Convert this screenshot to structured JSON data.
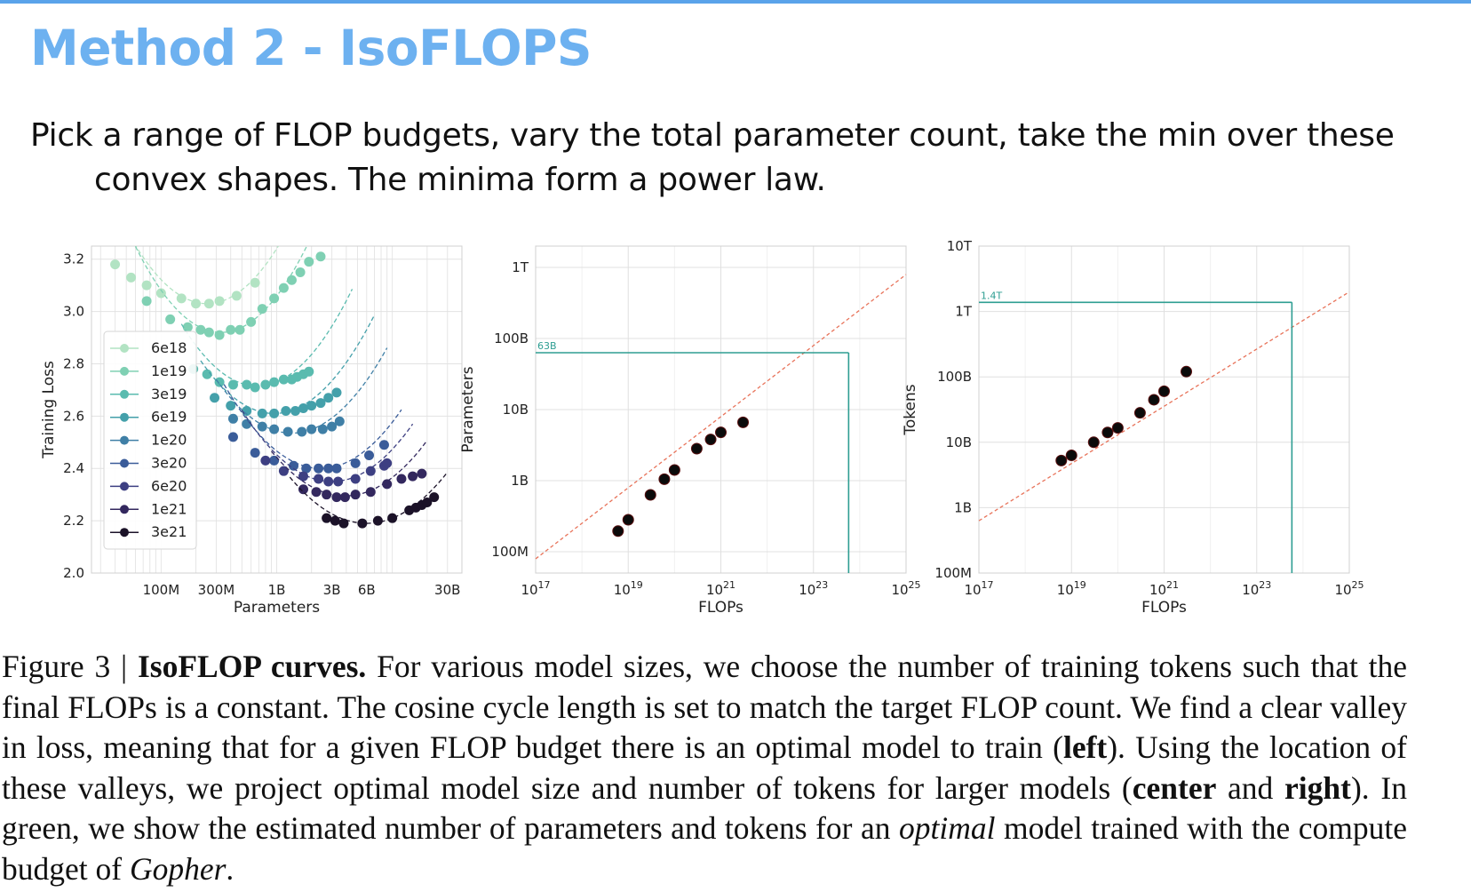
{
  "slide": {
    "title": "Method 2 - IsoFLOPS",
    "subtitle": "Pick a range of FLOP budgets, vary the total parameter count, take the min over these convex shapes. The minima form a power law."
  },
  "caption": {
    "figure_label": "Figure 3 | ",
    "bold_title": "IsoFLOP curves.",
    "text_1": " For various model sizes, we choose the number of training tokens such that the final FLOPs is a constant. The cosine cycle length is set to match the target FLOP count. We find a clear valley in loss, meaning that for a given FLOP budget there is an optimal model to train (",
    "left": "left",
    "text_2": "). Using the location of these valleys, we project optimal model size and number of tokens for larger models (",
    "center": "center",
    "text_3": " and ",
    "right": "right",
    "text_4": "). In green, we show the estimated number of parameters and tokens for an ",
    "optimal": "optimal",
    "text_5": " model trained with the compute budget of ",
    "gopher": "Gopher",
    "text_6": "."
  },
  "chart_data": [
    {
      "type": "line",
      "xlabel": "Parameters",
      "ylabel": "Training Loss",
      "x_scale": "log",
      "xlim": [
        25000000,
        40000000000
      ],
      "ylim": [
        2.0,
        3.25
      ],
      "x_ticks": [
        {
          "value": 100000000,
          "label": "100M"
        },
        {
          "value": 300000000,
          "label": "300M"
        },
        {
          "value": 1000000000,
          "label": "1B"
        },
        {
          "value": 3000000000,
          "label": "3B"
        },
        {
          "value": 6000000000,
          "label": "6B"
        },
        {
          "value": 30000000000,
          "label": "30B"
        }
      ],
      "y_ticks": [
        {
          "value": 2.0,
          "label": "2.0"
        },
        {
          "value": 2.2,
          "label": "2.2"
        },
        {
          "value": 2.4,
          "label": "2.4"
        },
        {
          "value": 2.6,
          "label": "2.6"
        },
        {
          "value": 2.8,
          "label": "2.8"
        },
        {
          "value": 3.0,
          "label": "3.0"
        },
        {
          "value": 3.2,
          "label": "3.2"
        }
      ],
      "grid": true,
      "legend_position": "lower-left",
      "series": [
        {
          "name": "6e18",
          "color": "#b2e3c3",
          "x_range": [
            35000000,
            1800000000
          ],
          "min_x": 250000000,
          "min_y": 3.03,
          "curvature": 0.58,
          "points": [
            [
              40000000,
              3.18
            ],
            [
              55000000,
              3.13
            ],
            [
              75000000,
              3.1
            ],
            [
              100000000,
              3.07
            ],
            [
              150000000,
              3.05
            ],
            [
              200000000,
              3.03
            ],
            [
              260000000,
              3.03
            ],
            [
              320000000,
              3.04
            ],
            [
              450000000,
              3.06
            ],
            [
              650000000,
              3.11
            ]
          ]
        },
        {
          "name": "1e19",
          "color": "#7fd0b3",
          "x_range": [
            60000000,
            3000000000
          ],
          "min_x": 330000000,
          "min_y": 2.92,
          "curvature": 0.6,
          "points": [
            [
              75000000,
              3.04
            ],
            [
              120000000,
              2.97
            ],
            [
              170000000,
              2.94
            ],
            [
              220000000,
              2.93
            ],
            [
              260000000,
              2.92
            ],
            [
              320000000,
              2.91
            ],
            [
              400000000,
              2.93
            ],
            [
              480000000,
              2.93
            ],
            [
              600000000,
              2.96
            ],
            [
              750000000,
              3.01
            ],
            [
              950000000,
              3.05
            ],
            [
              1150000000,
              3.09
            ],
            [
              1350000000,
              3.12
            ],
            [
              1600000000,
              3.15
            ],
            [
              1900000000,
              3.19
            ],
            [
              2400000000,
              3.21
            ]
          ]
        },
        {
          "name": "3e19",
          "color": "#5abbaf",
          "x_range": [
            150000000,
            4500000000
          ],
          "min_x": 680000000,
          "min_y": 2.715,
          "curvature": 0.55,
          "points": [
            [
              190000000,
              2.78
            ],
            [
              250000000,
              2.76
            ],
            [
              320000000,
              2.73
            ],
            [
              420000000,
              2.72
            ],
            [
              550000000,
              2.72
            ],
            [
              650000000,
              2.71
            ],
            [
              800000000,
              2.72
            ],
            [
              950000000,
              2.73
            ],
            [
              1150000000,
              2.74
            ],
            [
              1350000000,
              2.74
            ],
            [
              1500000000,
              2.75
            ],
            [
              1700000000,
              2.76
            ],
            [
              1900000000,
              2.77
            ]
          ]
        },
        {
          "name": "6e19",
          "color": "#44a0aa",
          "x_range": [
            220000000,
            7000000000
          ],
          "min_x": 950000000,
          "min_y": 2.61,
          "curvature": 0.5,
          "points": [
            [
              290000000,
              2.67
            ],
            [
              400000000,
              2.64
            ],
            [
              550000000,
              2.62
            ],
            [
              750000000,
              2.61
            ],
            [
              950000000,
              2.61
            ],
            [
              1200000000,
              2.62
            ],
            [
              1450000000,
              2.62
            ],
            [
              1700000000,
              2.63
            ],
            [
              2000000000,
              2.64
            ],
            [
              2400000000,
              2.65
            ],
            [
              2800000000,
              2.67
            ],
            [
              3300000000,
              2.69
            ]
          ]
        },
        {
          "name": "1e20",
          "color": "#3f7fa6",
          "x_range": [
            300000000,
            9000000000
          ],
          "min_x": 1350000000,
          "min_y": 2.535,
          "curvature": 0.48,
          "points": [
            [
              420000000,
              2.59
            ],
            [
              550000000,
              2.57
            ],
            [
              750000000,
              2.56
            ],
            [
              950000000,
              2.55
            ],
            [
              1250000000,
              2.54
            ],
            [
              1650000000,
              2.54
            ],
            [
              2000000000,
              2.55
            ],
            [
              2500000000,
              2.55
            ],
            [
              3000000000,
              2.56
            ],
            [
              3500000000,
              2.58
            ]
          ]
        },
        {
          "name": "3e20",
          "color": "#3a5c99",
          "x_range": [
            350000000,
            12000000000
          ],
          "min_x": 2400000000,
          "min_y": 2.4,
          "curvature": 0.46,
          "points": [
            [
              420000000,
              2.52
            ],
            [
              650000000,
              2.46
            ],
            [
              950000000,
              2.43
            ],
            [
              1400000000,
              2.41
            ],
            [
              1800000000,
              2.4
            ],
            [
              2300000000,
              2.4
            ],
            [
              2800000000,
              2.4
            ],
            [
              3300000000,
              2.4
            ],
            [
              4800000000,
              2.42
            ],
            [
              6300000000,
              2.45
            ],
            [
              8500000000,
              2.49
            ]
          ]
        },
        {
          "name": "6e20",
          "color": "#3d3f82",
          "x_range": [
            500000000,
            15000000000
          ],
          "min_x": 3000000000,
          "min_y": 2.35,
          "curvature": 0.45,
          "points": [
            [
              800000000,
              2.43
            ],
            [
              1150000000,
              2.39
            ],
            [
              1700000000,
              2.37
            ],
            [
              2300000000,
              2.36
            ],
            [
              2800000000,
              2.35
            ],
            [
              3400000000,
              2.35
            ],
            [
              4800000000,
              2.36
            ],
            [
              6500000000,
              2.39
            ],
            [
              8500000000,
              2.41
            ],
            [
              9000000000,
              2.42
            ]
          ]
        },
        {
          "name": "1e21",
          "color": "#33285e",
          "x_range": [
            900000000,
            20000000000
          ],
          "min_x": 3900000000,
          "min_y": 2.295,
          "curvature": 0.42,
          "points": [
            [
              1700000000,
              2.32
            ],
            [
              2200000000,
              2.31
            ],
            [
              2700000000,
              2.3
            ],
            [
              3300000000,
              2.29
            ],
            [
              3900000000,
              2.29
            ],
            [
              4800000000,
              2.3
            ],
            [
              6500000000,
              2.31
            ],
            [
              9000000000,
              2.34
            ],
            [
              12000000000,
              2.36
            ],
            [
              15000000000,
              2.37
            ],
            [
              18000000000,
              2.38
            ]
          ]
        },
        {
          "name": "3e21",
          "color": "#1b1228",
          "x_range": [
            1300000000,
            30000000000
          ],
          "min_x": 6000000000,
          "min_y": 2.19,
          "curvature": 0.4,
          "points": [
            [
              2700000000,
              2.21
            ],
            [
              3200000000,
              2.2
            ],
            [
              3800000000,
              2.19
            ],
            [
              5500000000,
              2.19
            ],
            [
              7500000000,
              2.2
            ],
            [
              10000000000,
              2.21
            ],
            [
              14000000000,
              2.24
            ],
            [
              16000000000,
              2.25
            ],
            [
              18000000000,
              2.26
            ],
            [
              20000000000,
              2.27
            ],
            [
              23000000000,
              2.29
            ]
          ]
        }
      ]
    },
    {
      "type": "scatter",
      "xlabel": "FLOPs",
      "ylabel": "Parameters",
      "x_scale": "log",
      "y_scale": "log",
      "xlim_log10": [
        17,
        25
      ],
      "ylim_log10": [
        7.7,
        12.3
      ],
      "x_ticks": [
        "10^17",
        "10^19",
        "10^21",
        "10^23",
        "10^25"
      ],
      "y_ticks": [
        {
          "log10": 8,
          "label": "100M"
        },
        {
          "log10": 9,
          "label": "1B"
        },
        {
          "log10": 10,
          "label": "10B"
        },
        {
          "log10": 11,
          "label": "100B"
        },
        {
          "log10": 12,
          "label": "1T"
        }
      ],
      "grid": true,
      "fit_line": {
        "color": "#e8735a",
        "style": "dashed",
        "log10_points": [
          [
            17,
            7.9
          ],
          [
            25,
            11.9
          ]
        ]
      },
      "annotation": {
        "label": "63B",
        "color": "#2e9e92",
        "log10_x": 23.76,
        "log10_y": 10.8
      },
      "points_log10": [
        [
          18.78,
          8.29
        ],
        [
          19.0,
          8.45
        ],
        [
          19.48,
          8.8
        ],
        [
          19.78,
          9.02
        ],
        [
          20.0,
          9.15
        ],
        [
          20.48,
          9.45
        ],
        [
          20.78,
          9.58
        ],
        [
          21.0,
          9.68
        ],
        [
          21.48,
          9.82
        ]
      ]
    },
    {
      "type": "scatter",
      "xlabel": "FLOPs",
      "ylabel": "Tokens",
      "x_scale": "log",
      "y_scale": "log",
      "xlim_log10": [
        17,
        25
      ],
      "ylim_log10": [
        8,
        13
      ],
      "x_ticks": [
        "10^17",
        "10^19",
        "10^21",
        "10^23",
        "10^25"
      ],
      "y_ticks": [
        {
          "log10": 8,
          "label": "100M"
        },
        {
          "log10": 9,
          "label": "1B"
        },
        {
          "log10": 10,
          "label": "10B"
        },
        {
          "log10": 11,
          "label": "100B"
        },
        {
          "log10": 12,
          "label": "1T"
        },
        {
          "log10": 13,
          "label": "10T"
        }
      ],
      "grid": true,
      "fit_line": {
        "color": "#e8735a",
        "style": "dashed",
        "log10_points": [
          [
            17,
            8.8
          ],
          [
            25,
            12.3
          ]
        ]
      },
      "annotation": {
        "label": "1.4T",
        "color": "#2e9e92",
        "log10_x": 23.76,
        "log10_y": 12.14
      },
      "points_log10": [
        [
          18.78,
          9.72
        ],
        [
          19.0,
          9.8
        ],
        [
          19.48,
          10.0
        ],
        [
          19.78,
          10.15
        ],
        [
          20.0,
          10.22
        ],
        [
          20.48,
          10.45
        ],
        [
          20.78,
          10.65
        ],
        [
          21.0,
          10.78
        ],
        [
          21.48,
          11.08
        ]
      ]
    }
  ]
}
